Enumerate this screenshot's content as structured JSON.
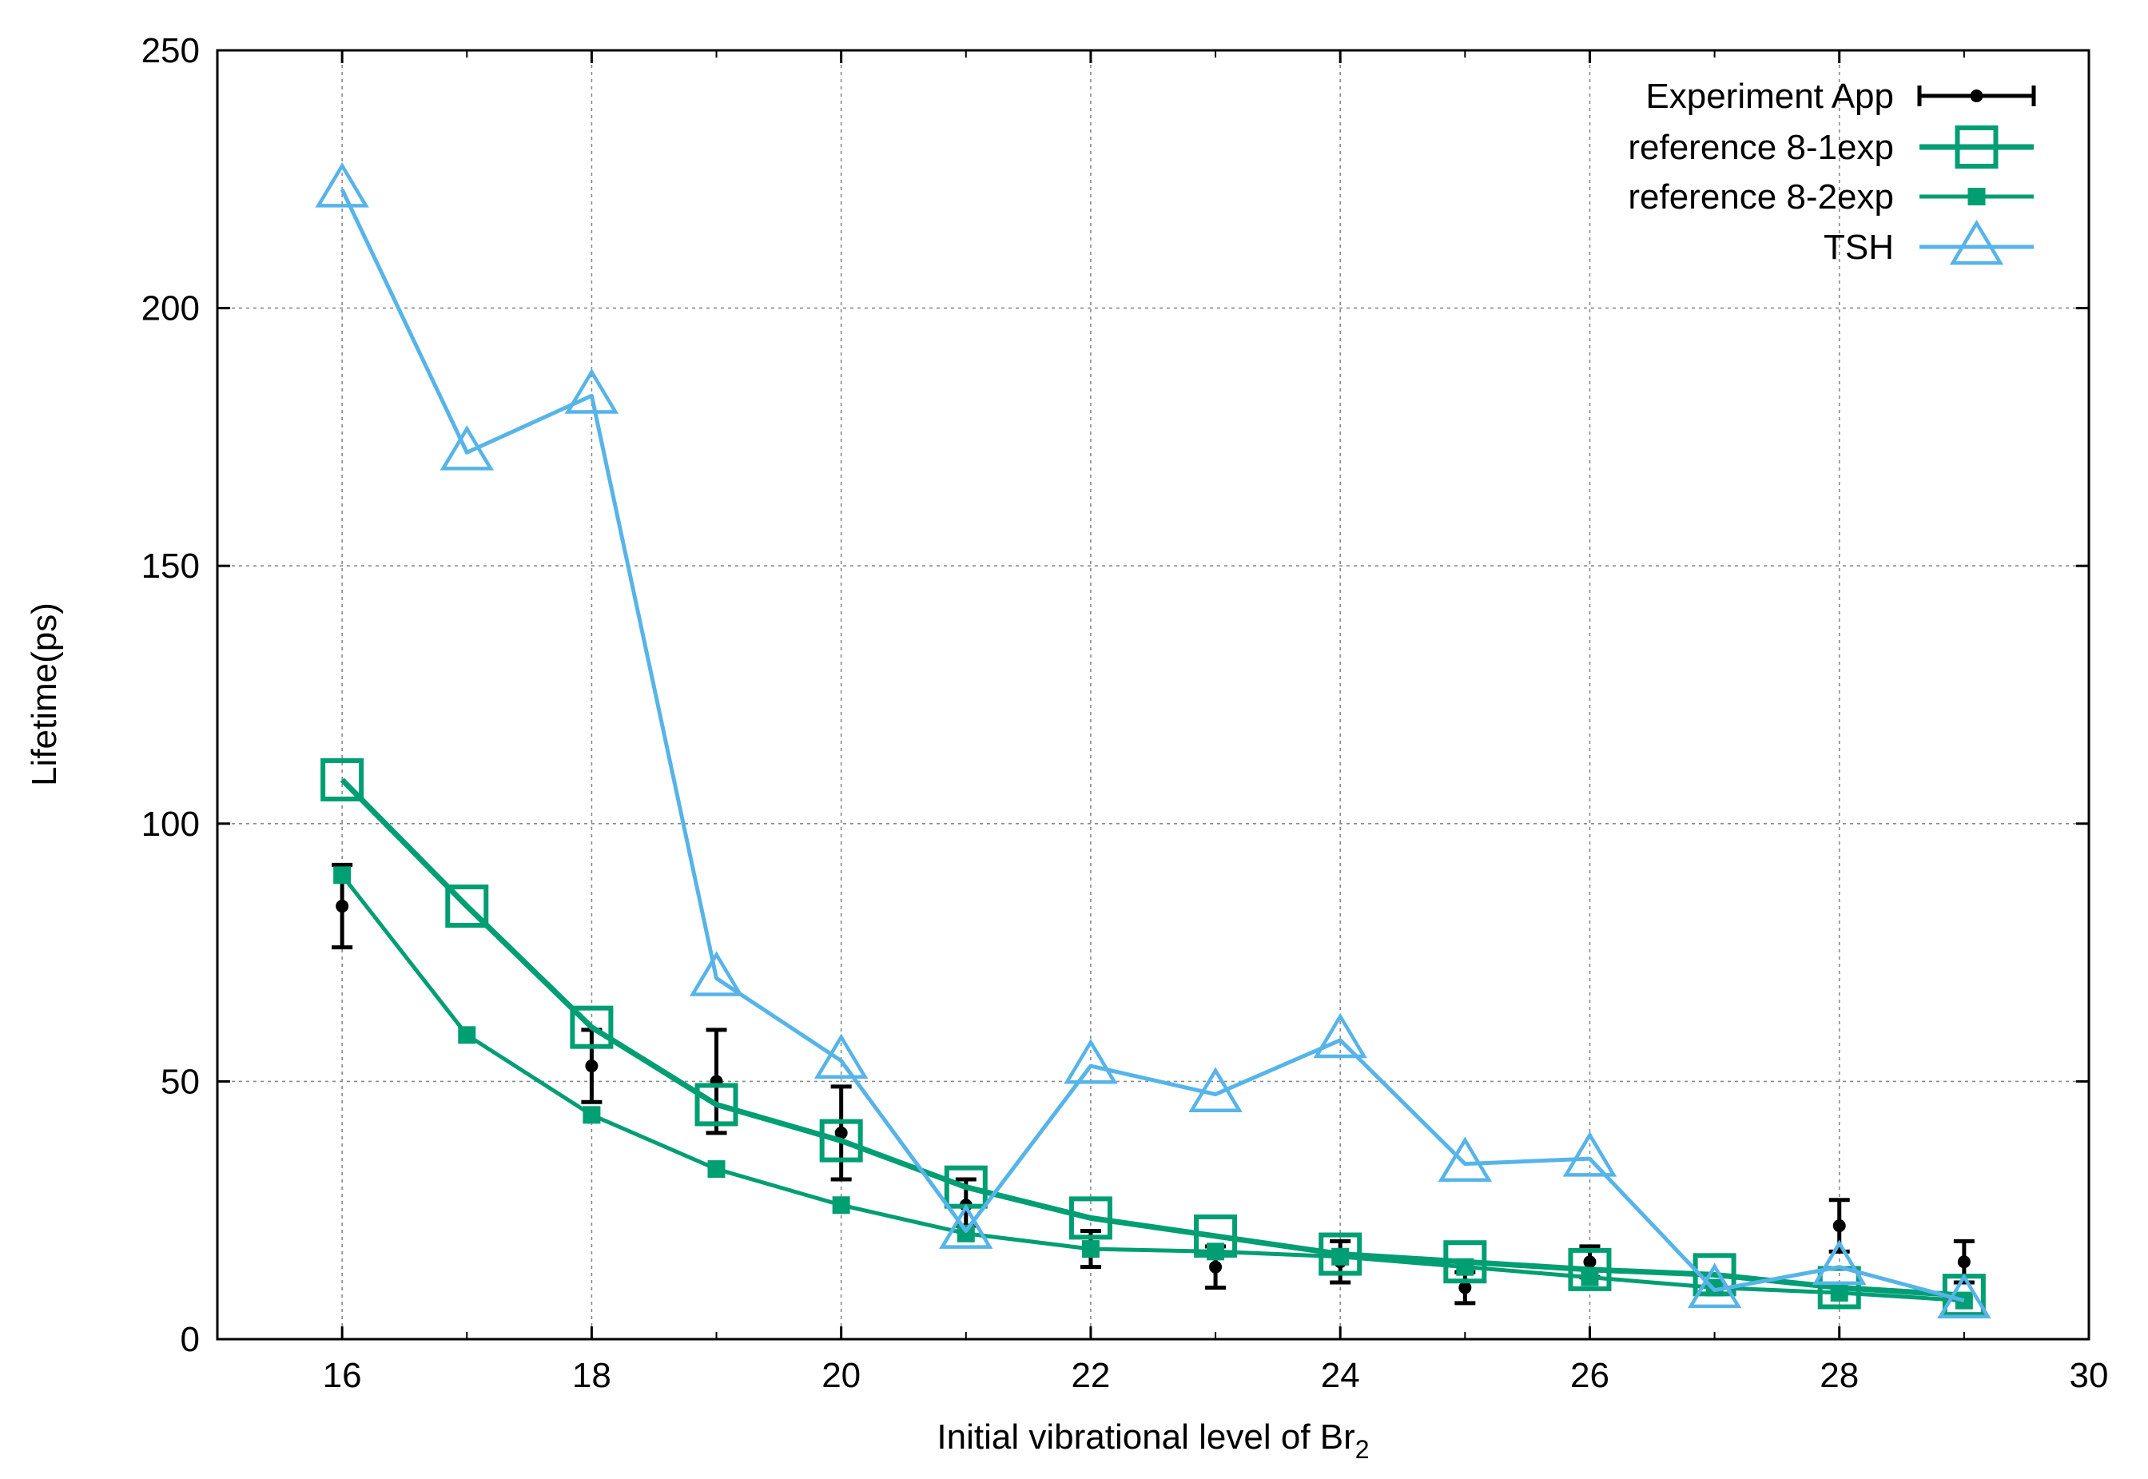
{
  "chart_data": {
    "type": "line",
    "title": "",
    "xlabel": "Initial vibrational level of Br",
    "xlabel_subscript": "2",
    "ylabel": "Lifetime(ps)",
    "xlim": [
      15,
      30
    ],
    "ylim": [
      0,
      250
    ],
    "xticks": [
      16,
      18,
      20,
      22,
      24,
      26,
      28,
      30
    ],
    "yticks": [
      0,
      50,
      100,
      150,
      200,
      250
    ],
    "grid": true,
    "legend_position": "top-right",
    "series": [
      {
        "name": "Experiment App",
        "style": "errorbar",
        "color": "#000000",
        "x": [
          16,
          18,
          19,
          20,
          21,
          22,
          23,
          24,
          25,
          26,
          28,
          29
        ],
        "y": [
          84,
          53,
          50,
          40,
          26,
          18,
          14,
          15,
          10,
          15,
          22,
          15
        ],
        "yerr_low": [
          76,
          46,
          40,
          31,
          22,
          14,
          10,
          11,
          7,
          12,
          17,
          11
        ],
        "yerr_high": [
          92,
          60,
          60,
          49,
          31,
          21,
          18,
          19,
          13,
          18,
          27,
          19
        ]
      },
      {
        "name": "reference 8-1exp",
        "style": "open-square-line",
        "color": "#009e73",
        "x": [
          16,
          17,
          18,
          19,
          20,
          21,
          22,
          23,
          24,
          25,
          26,
          27,
          28,
          29
        ],
        "y": [
          108.5,
          84,
          60.5,
          45.5,
          38.5,
          29.5,
          23.5,
          20,
          16.5,
          15,
          13.5,
          12.5,
          10,
          8.5
        ]
      },
      {
        "name": "reference 8-2exp",
        "style": "filled-square-line",
        "color": "#009e73",
        "x": [
          16,
          17,
          18,
          19,
          20,
          21,
          22,
          23,
          24,
          25,
          26,
          27,
          28,
          29
        ],
        "y": [
          90,
          59,
          43.5,
          33,
          26,
          20.5,
          17.5,
          17,
          16,
          14,
          12,
          10,
          9,
          7.5
        ]
      },
      {
        "name": "TSH",
        "style": "open-triangle-line",
        "color": "#56b4e9",
        "x": [
          16,
          17,
          18,
          19,
          20,
          21,
          22,
          23,
          24,
          25,
          26,
          27,
          28,
          29
        ],
        "y": [
          223,
          172,
          183,
          70,
          54,
          21,
          53,
          47.5,
          58,
          34,
          35,
          9.5,
          14,
          7.5
        ]
      }
    ]
  }
}
